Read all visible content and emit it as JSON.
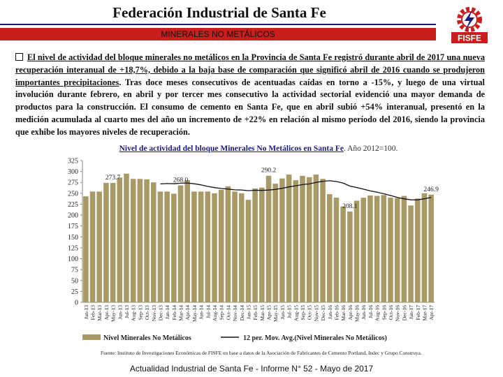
{
  "header": {
    "title": "Federación Industrial de Santa Fe",
    "subtitle": "MINERALES NO METÁLICOS"
  },
  "logo": {
    "text": "FISFE",
    "icon": "gear-lightning-logo",
    "colors": {
      "red": "#c81e1e",
      "navy": "#1a1a7a"
    }
  },
  "paragraph": {
    "underlined": "El nivel de actividad del bloque minerales no metálicos en la Provincia de Santa Fe registró durante abril de 2017 una nueva recuperación interanual de +18,7%, debido a la baja base de comparación que significó abril de 2016 cuando se produjeron importantes precipitaciones",
    "rest": ". Tras doce meses consecutivos de acentuadas caídas en torno a -15%, y luego de una virtual involución durante febrero, en abril y por tercer mes consecutivo la actividad sectorial evidenció una mayor demanda de productos para la construcción. El consumo de cemento en Santa Fe, que en abril subió +54% interanual, presentó en la medición acumulada al cuarto mes del año un incremento de +22% en relación al mismo período del 2016, siendo la provincia que exhibe los mayores niveles de recuperación."
  },
  "chart_title": {
    "main": "Nivel de actividad del bloque Minerales No Metálicos en Santa Fe",
    "base": ". Año 2012=100."
  },
  "chart_data": {
    "type": "bar",
    "categories": [
      "Jan-13",
      "Feb-13",
      "Mar-13",
      "Apr-13",
      "May-13",
      "Jun-13",
      "Jul-13",
      "Aug-13",
      "Sep-13",
      "Oct-13",
      "Nov-13",
      "Dec-13",
      "Jan-14",
      "Feb-14",
      "Mar-14",
      "Apr-14",
      "May-14",
      "Jun-14",
      "Jul-14",
      "Aug-14",
      "Sep-14",
      "Oct-14",
      "Nov-14",
      "Dec-14",
      "Jan-15",
      "Feb-15",
      "Mar-15",
      "Apr-15",
      "May-15",
      "Jun-15",
      "Jul-15",
      "Aug-15",
      "Sep-15",
      "Oct-15",
      "Nov-15",
      "Dec-15",
      "Jan-16",
      "Feb-16",
      "Mar-16",
      "Apr-16",
      "May-16",
      "Jun-16",
      "Jul-16",
      "Aug-16",
      "Sep-16",
      "Oct-16",
      "Nov-16",
      "Dec-16",
      "Jan-17",
      "Feb-17",
      "Mar-17",
      "Apr-17"
    ],
    "series": [
      {
        "name": "Nivel Minerales No Metálicos",
        "color": "#a89a66",
        "values": [
          243,
          254,
          254,
          274,
          273.7,
          286,
          295,
          283,
          283,
          282,
          275,
          254,
          254,
          249,
          268,
          280,
          254,
          254,
          254,
          250,
          258,
          266,
          254,
          250,
          235,
          261,
          263,
          290.2,
          272,
          284,
          293,
          280,
          290,
          287,
          293,
          283,
          248,
          240,
          220,
          208.1,
          233,
          240,
          245,
          244,
          246,
          240,
          239,
          244,
          222,
          238,
          250,
          246.9
        ]
      },
      {
        "name": "12 per. Mov. Avg.(Nivel Minerales No Metálicos)",
        "color": "#111111"
      }
    ],
    "data_labels": [
      {
        "index": 4,
        "text": "273.7"
      },
      {
        "index": 14,
        "text": "268.0"
      },
      {
        "index": 27,
        "text": "290.2"
      },
      {
        "index": 39,
        "text": "208.1"
      },
      {
        "index": 51,
        "text": "246.9"
      }
    ],
    "y_ticks": [
      "0",
      "25",
      "50",
      "75",
      "100",
      "125",
      "150",
      "175",
      "200",
      "225",
      "250",
      "275",
      "300",
      "325"
    ],
    "ylim": [
      0,
      325
    ],
    "legend_position": "bottom",
    "grid": false
  },
  "source": "Fuente: Instituto de Investigaciones Económicas de FISFE en base a datos de la Asociación de Fabricantes de Cemento Portland, Indec y Grupo Construya.",
  "footer": "Actualidad Industrial de Santa Fe - Informe N° 52 - Mayo de 2017"
}
